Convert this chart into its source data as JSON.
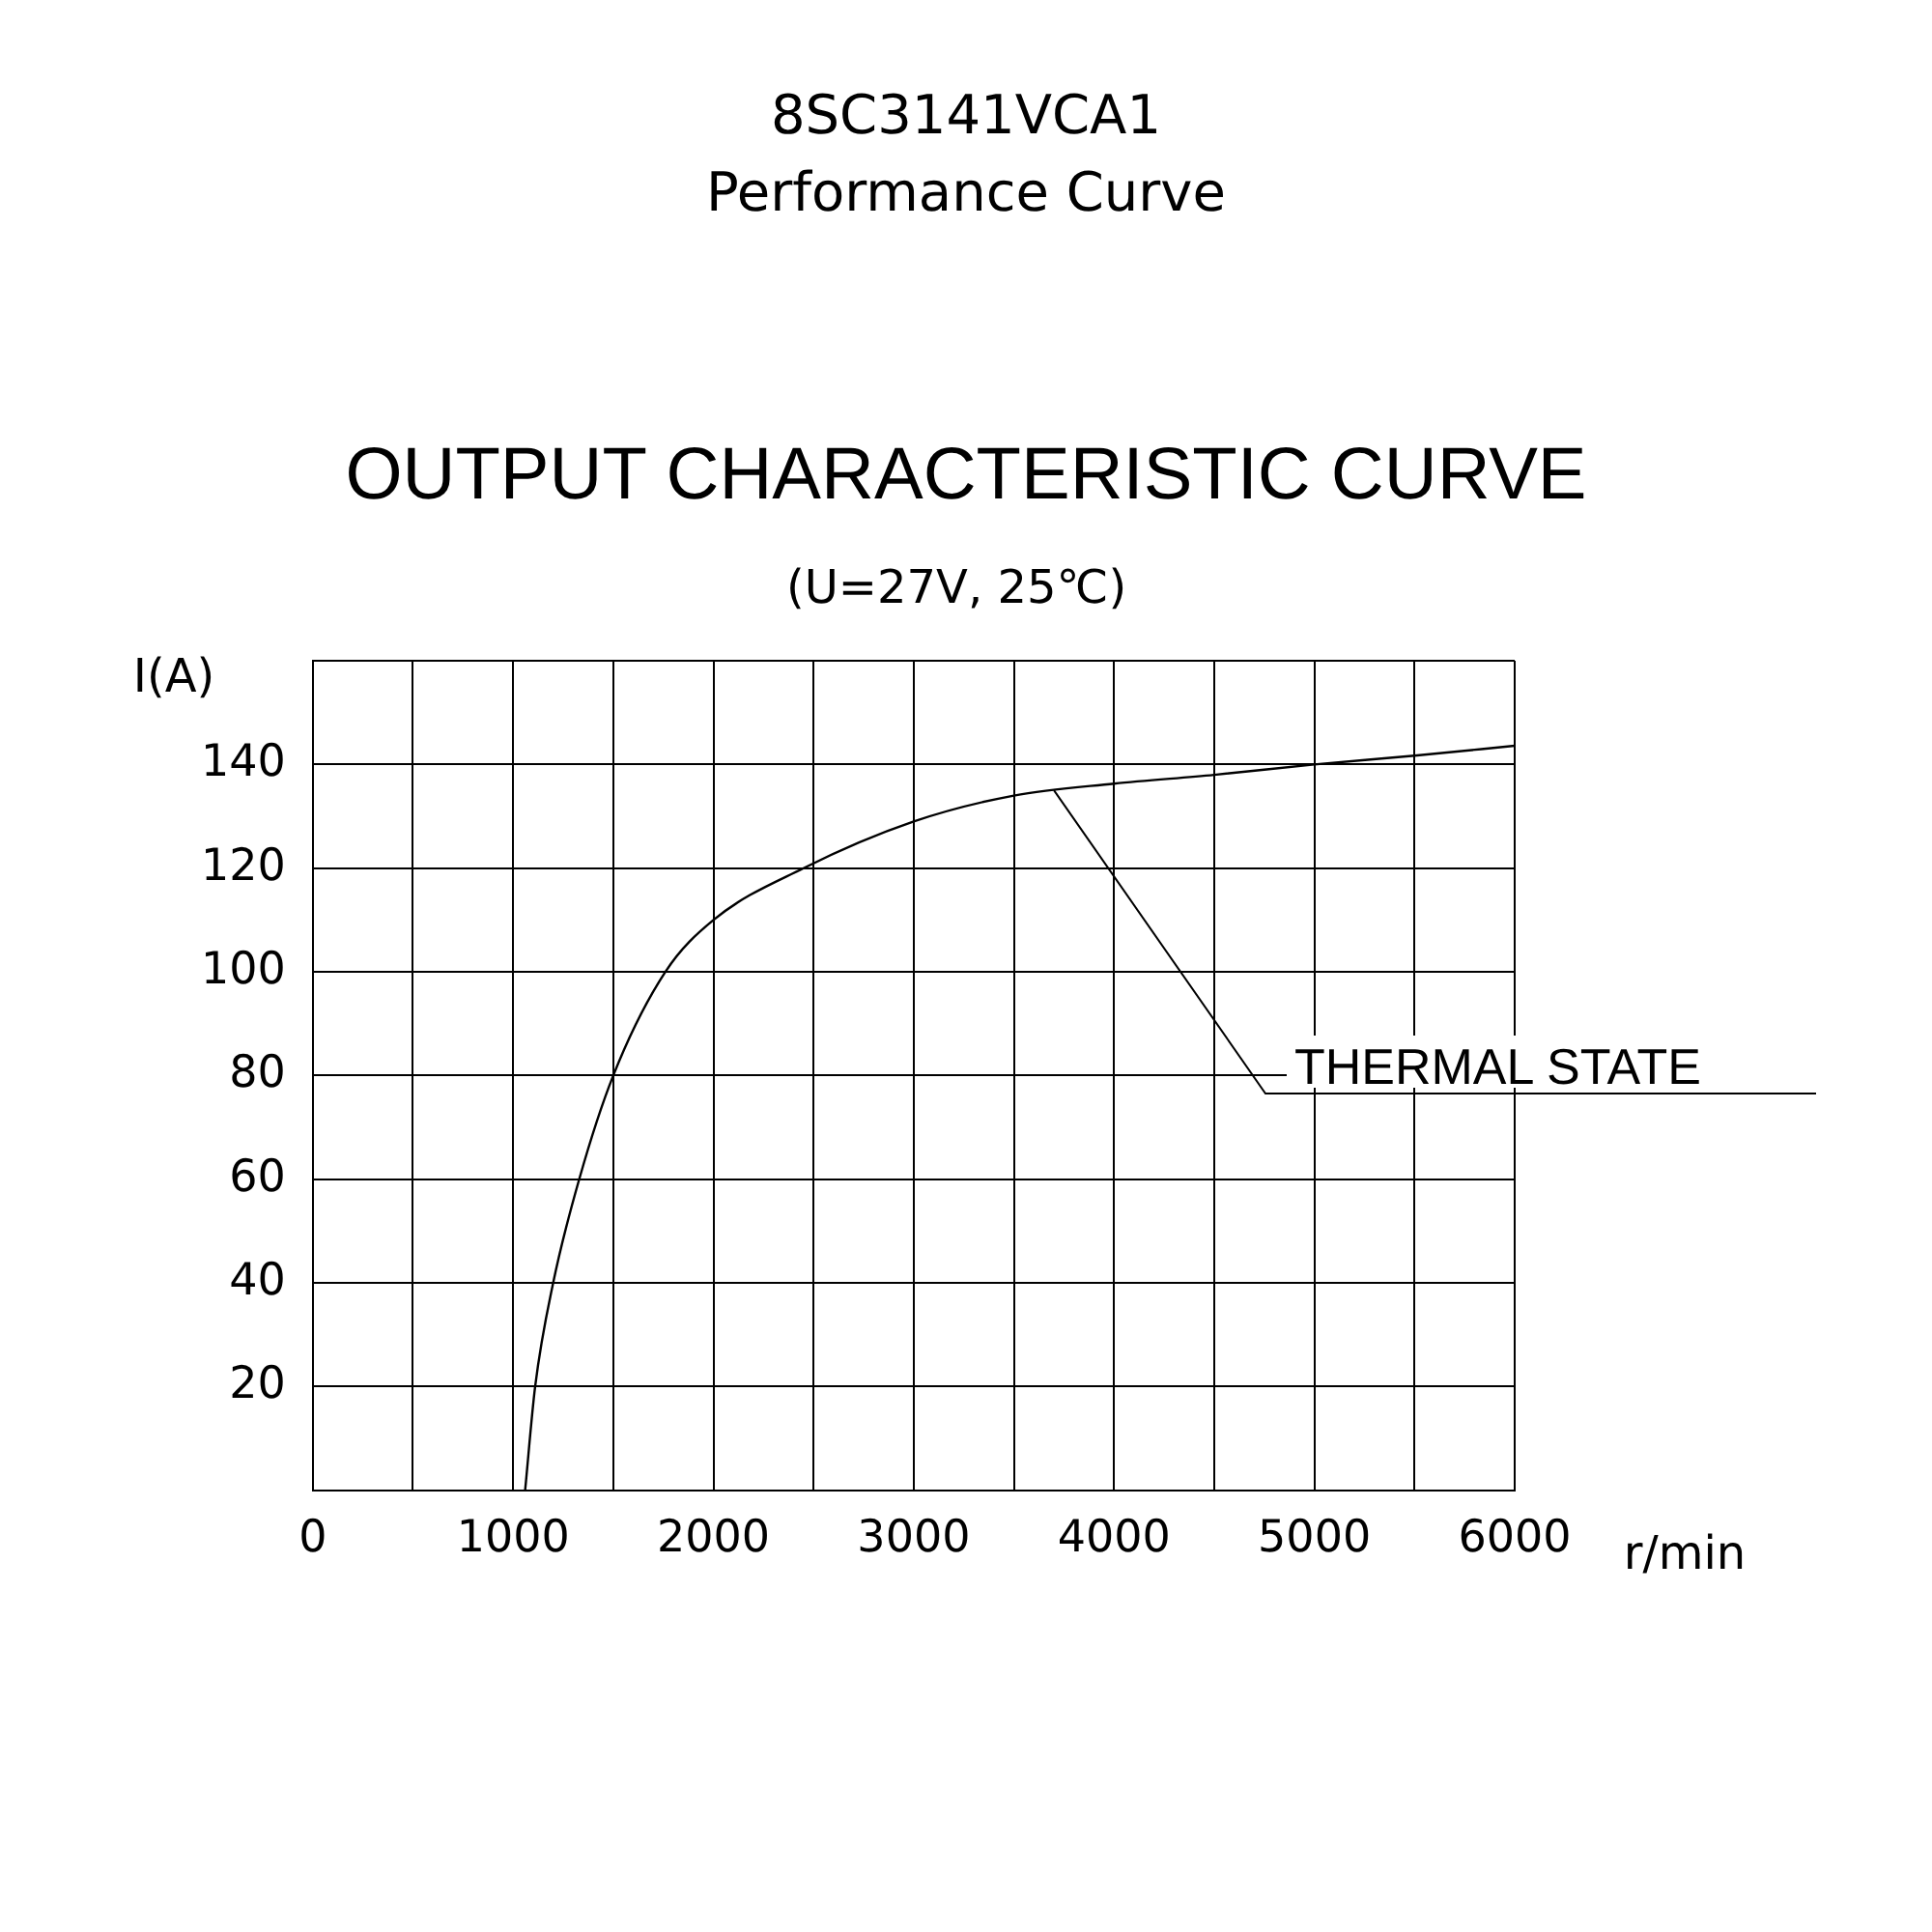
{
  "chart_data": {
    "type": "line",
    "title": "8SC3141VCA1",
    "subtitle": "Performance Curve",
    "annotations": [
      "OUTPUT CHARACTERISTIC CURVE",
      "(U=27V, 25℃)",
      {
        "text": "THERMAL STATE",
        "x": 3700,
        "y": 135
      }
    ],
    "xlabel": "r/min",
    "ylabel": "I(A)",
    "series": [
      {
        "color": "#000000",
        "x": [
          1060,
          1110,
          1200,
          1330,
          1500,
          1760,
          2000,
          2450,
          3000,
          3500,
          4000,
          4500,
          5000,
          5500,
          6000
        ],
        "values": [
          0,
          20,
          40,
          60,
          80,
          100,
          110,
          120,
          129,
          134,
          136.3,
          138,
          140,
          141.7,
          143.6
        ]
      }
    ],
    "xlim": [
      0,
      6000
    ],
    "xticks": [
      0,
      {
        "value": 500,
        "label": null
      },
      1000,
      {
        "value": 1500,
        "label": null
      },
      2000,
      {
        "value": 2500,
        "label": null
      },
      3000,
      {
        "value": 3500,
        "label": null
      },
      4000,
      {
        "value": 4500,
        "label": null
      },
      5000,
      {
        "value": 5500,
        "label": null
      },
      6000
    ],
    "ylim": [
      0,
      160
    ],
    "yticks": [
      {
        "value": 0,
        "label": null
      },
      20,
      40,
      60,
      80,
      100,
      120,
      140,
      {
        "value": 160,
        "label": null
      }
    ],
    "grid": true,
    "legend": false,
    "marker": "none",
    "line_style": "solid"
  }
}
